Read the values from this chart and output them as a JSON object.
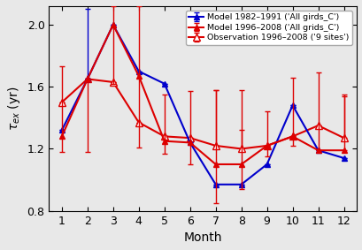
{
  "months": [
    1,
    2,
    3,
    4,
    5,
    6,
    7,
    8,
    9,
    10,
    11,
    12
  ],
  "blue_y": [
    1.32,
    1.65,
    2.0,
    1.7,
    1.62,
    1.24,
    0.97,
    0.97,
    1.1,
    1.48,
    1.19,
    1.14
  ],
  "blue_err_up": [
    0.0,
    0.45,
    0.0,
    0.0,
    0.0,
    0.0,
    0.0,
    0.0,
    0.0,
    0.0,
    0.0,
    0.0
  ],
  "blue_err_lo": [
    0.0,
    0.0,
    0.0,
    0.0,
    0.0,
    0.0,
    0.0,
    0.0,
    0.0,
    0.0,
    0.0,
    0.0
  ],
  "red_y": [
    1.28,
    1.65,
    2.0,
    1.67,
    1.25,
    1.24,
    1.1,
    1.1,
    1.22,
    1.28,
    1.19,
    1.19
  ],
  "red_err_up": [
    0.45,
    0.0,
    0.12,
    0.45,
    0.3,
    0.33,
    0.48,
    0.22,
    0.22,
    0.38,
    0.5,
    0.36
  ],
  "red_err_lo": [
    0.1,
    0.47,
    0.38,
    0.46,
    0.08,
    0.14,
    0.25,
    0.16,
    0.07,
    0.06,
    0.0,
    0.0
  ],
  "obs_y": [
    1.5,
    1.65,
    1.63,
    1.37,
    1.28,
    1.27,
    1.22,
    1.2,
    1.22,
    1.28,
    1.35,
    1.27
  ],
  "obs_err_up": [
    0.0,
    0.0,
    0.0,
    0.0,
    0.0,
    0.0,
    0.36,
    0.38,
    0.0,
    0.0,
    0.0,
    0.27
  ],
  "obs_err_lo": [
    0.0,
    0.0,
    0.0,
    0.0,
    0.0,
    0.0,
    0.0,
    0.0,
    0.0,
    0.0,
    0.0,
    0.0
  ],
  "color_blue": "#0000cc",
  "color_red": "#dd0000",
  "xlabel": "Month",
  "ylim": [
    0.8,
    2.12
  ],
  "yticks": [
    0.8,
    1.2,
    1.6,
    2.0
  ],
  "xticks": [
    1,
    2,
    3,
    4,
    5,
    6,
    7,
    8,
    9,
    10,
    11,
    12
  ],
  "legend_label_blue_1": "Model 1982–1991 ('All girds_C')",
  "legend_label_red_1": "Model 1996–2008 ('All grids_C')",
  "legend_label_red_2": "Observation 1996–2008 ('9 sites')"
}
